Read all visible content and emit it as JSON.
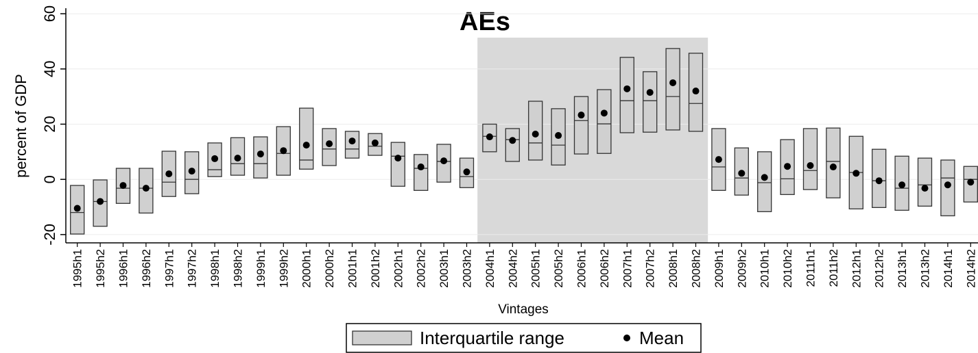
{
  "chart_data": {
    "type": "range",
    "title": "AEs",
    "y_label": "percent of GDP",
    "x_label": "Vintages",
    "categories": [
      "1995h1",
      "1995h2",
      "1996h1",
      "1996h2",
      "1997h1",
      "1997h2",
      "1998h1",
      "1998h2",
      "1999h1",
      "1999h2",
      "2000h1",
      "2000h2",
      "2001h1",
      "2001h2",
      "2002h1",
      "2002h2",
      "2003h1",
      "2003h2",
      "2004h1",
      "2004h2",
      "2005h1",
      "2005h2",
      "2006h1",
      "2006h2",
      "2007h1",
      "2007h2",
      "2008h1",
      "2008h2",
      "2009h1",
      "2009h2",
      "2010h1",
      "2010h2",
      "2011h1",
      "2011h2",
      "2012h1",
      "2012h2",
      "2013h1",
      "2013h2",
      "2014h1",
      "2014h2"
    ],
    "series": [
      {
        "name": "Interquartile range",
        "color": "#d0d0d0",
        "low": [
          -19.8,
          -17,
          -8.7,
          -12.2,
          -6.2,
          -5.2,
          1,
          1.5,
          0.5,
          1.5,
          3.7,
          5,
          7.7,
          8.7,
          -2.5,
          -4,
          -1,
          -3,
          10,
          6.5,
          7,
          5.2,
          9.2,
          9.4,
          16.9,
          17.1,
          17.9,
          17.4,
          -4,
          -5.7,
          -11.7,
          -5.5,
          -3.7,
          -6.7,
          -10.7,
          -10.2,
          -11.2,
          -9.7,
          -13.2,
          -8.2
        ],
        "high": [
          -2.2,
          -0.2,
          4,
          4,
          10.2,
          10,
          13.2,
          15.1,
          15.4,
          19.1,
          25.8,
          18.4,
          17.4,
          16.6,
          13.4,
          9,
          12.7,
          7.7,
          20,
          18.4,
          28.3,
          25.6,
          30,
          32.5,
          44.2,
          39,
          47.4,
          45.7,
          18.4,
          11.4,
          10,
          14.4,
          18.4,
          18.6,
          15.6,
          10.9,
          8.4,
          7.7,
          7,
          4.7
        ],
        "median": [
          -12,
          -8,
          -3.2,
          -3.2,
          -1,
          0,
          3.5,
          5.7,
          5.7,
          9.4,
          7,
          11,
          11,
          12,
          8.4,
          4,
          6.5,
          1,
          15.6,
          14.4,
          13.2,
          12.4,
          21.3,
          20.1,
          28.5,
          28.5,
          30,
          27.5,
          4.5,
          0.5,
          -1.2,
          0.2,
          3.2,
          6.5,
          2.5,
          -0.5,
          -3.2,
          -2,
          0.5,
          0
        ]
      },
      {
        "name": "Mean",
        "color": "#000000",
        "values": [
          -10.5,
          -8,
          -2.2,
          -3.2,
          2,
          3,
          7.5,
          7.7,
          9.2,
          10.4,
          12.4,
          12.9,
          13.9,
          13.2,
          7.7,
          4.5,
          6.7,
          2.7,
          15.4,
          14.1,
          16.4,
          15.9,
          23.3,
          24,
          32.8,
          31.5,
          35,
          32,
          7.2,
          2.2,
          0.7,
          4.7,
          5,
          4.5,
          2.2,
          -0.5,
          -2,
          -3.2,
          -2,
          -1
        ]
      }
    ],
    "ylim": [
      -23,
      62
    ],
    "yticks": [
      -20,
      0,
      20,
      40,
      60
    ],
    "grid": true,
    "highlight": [
      "2004h1",
      "2008h2"
    ],
    "highlight_color": "#d9d9d9"
  }
}
